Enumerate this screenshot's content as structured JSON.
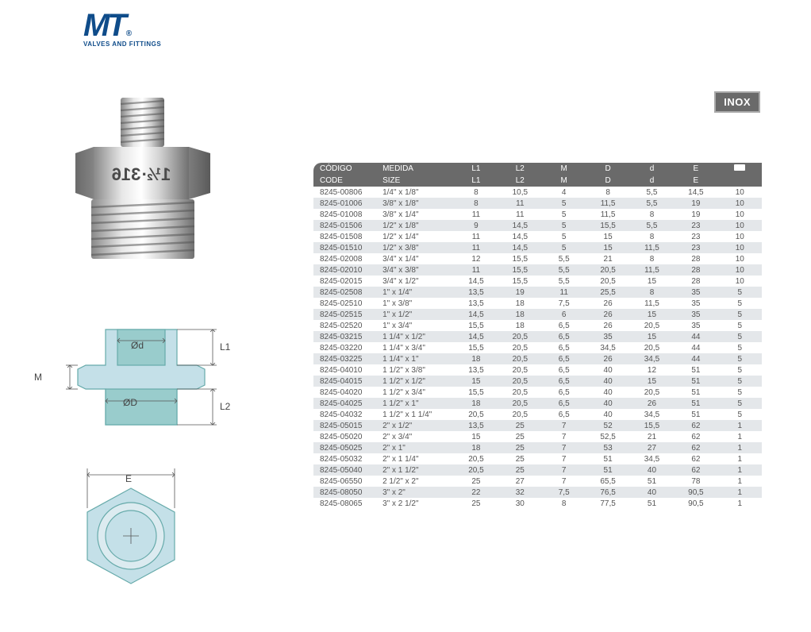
{
  "logo": {
    "main": "MT",
    "registered": "®",
    "subtitle": "VALVES AND FITTINGS"
  },
  "badge": "INOX",
  "diagram_labels": {
    "d": "Ød",
    "D": "ØD",
    "L1": "L1",
    "L2": "L2",
    "M": "M",
    "E": "E"
  },
  "table": {
    "header1": [
      "CÓDIGO",
      "MEDIDA",
      "L1",
      "L2",
      "M",
      "D",
      "d",
      "E",
      ""
    ],
    "header2": [
      "CODE",
      "SIZE",
      "L1",
      "L2",
      "M",
      "D",
      "d",
      "E",
      ""
    ],
    "columns_count": 9,
    "rows": [
      [
        "8245-00806",
        "1/4\" x 1/8\"",
        "8",
        "10,5",
        "4",
        "8",
        "5,5",
        "14,5",
        "10"
      ],
      [
        "8245-01006",
        "3/8\" x 1/8\"",
        "8",
        "11",
        "5",
        "11,5",
        "5,5",
        "19",
        "10"
      ],
      [
        "8245-01008",
        "3/8\" x 1/4\"",
        "11",
        "11",
        "5",
        "11,5",
        "8",
        "19",
        "10"
      ],
      [
        "8245-01506",
        "1/2\" x 1/8\"",
        "9",
        "14,5",
        "5",
        "15,5",
        "5,5",
        "23",
        "10"
      ],
      [
        "8245-01508",
        "1/2\" x 1/4\"",
        "11",
        "14,5",
        "5",
        "15",
        "8",
        "23",
        "10"
      ],
      [
        "8245-01510",
        "1/2\" x 3/8\"",
        "11",
        "14,5",
        "5",
        "15",
        "11,5",
        "23",
        "10"
      ],
      [
        "8245-02008",
        "3/4\" x 1/4\"",
        "12",
        "15,5",
        "5,5",
        "21",
        "8",
        "28",
        "10"
      ],
      [
        "8245-02010",
        "3/4\" x 3/8\"",
        "11",
        "15,5",
        "5,5",
        "20,5",
        "11,5",
        "28",
        "10"
      ],
      [
        "8245-02015",
        "3/4\" x 1/2\"",
        "14,5",
        "15,5",
        "5,5",
        "20,5",
        "15",
        "28",
        "10"
      ],
      [
        "8245-02508",
        "1\" x 1/4\"",
        "13,5",
        "19",
        "11",
        "25,5",
        "8",
        "35",
        "5"
      ],
      [
        "8245-02510",
        "1\" x 3/8\"",
        "13,5",
        "18",
        "7,5",
        "26",
        "11,5",
        "35",
        "5"
      ],
      [
        "8245-02515",
        "1\" x 1/2\"",
        "14,5",
        "18",
        "6",
        "26",
        "15",
        "35",
        "5"
      ],
      [
        "8245-02520",
        "1\" x 3/4\"",
        "15,5",
        "18",
        "6,5",
        "26",
        "20,5",
        "35",
        "5"
      ],
      [
        "8245-03215",
        "1 1/4\" x 1/2\"",
        "14,5",
        "20,5",
        "6,5",
        "35",
        "15",
        "44",
        "5"
      ],
      [
        "8245-03220",
        "1 1/4\" x 3/4\"",
        "15,5",
        "20,5",
        "6,5",
        "34,5",
        "20,5",
        "44",
        "5"
      ],
      [
        "8245-03225",
        "1 1/4\" x 1\"",
        "18",
        "20,5",
        "6,5",
        "26",
        "34,5",
        "44",
        "5"
      ],
      [
        "8245-04010",
        "1 1/2\" x 3/8\"",
        "13,5",
        "20,5",
        "6,5",
        "40",
        "12",
        "51",
        "5"
      ],
      [
        "8245-04015",
        "1 1/2\" x 1/2\"",
        "15",
        "20,5",
        "6,5",
        "40",
        "15",
        "51",
        "5"
      ],
      [
        "8245-04020",
        "1 1/2\" x 3/4\"",
        "15,5",
        "20,5",
        "6,5",
        "40",
        "20,5",
        "51",
        "5"
      ],
      [
        "8245-04025",
        "1 1/2\" x 1\"",
        "18",
        "20,5",
        "6,5",
        "40",
        "26",
        "51",
        "5"
      ],
      [
        "8245-04032",
        "1 1/2\" x 1 1/4\"",
        "20,5",
        "20,5",
        "6,5",
        "40",
        "34,5",
        "51",
        "5"
      ],
      [
        "8245-05015",
        "2\" x 1/2\"",
        "13,5",
        "25",
        "7",
        "52",
        "15,5",
        "62",
        "1"
      ],
      [
        "8245-05020",
        "2\" x 3/4\"",
        "15",
        "25",
        "7",
        "52,5",
        "21",
        "62",
        "1"
      ],
      [
        "8245-05025",
        "2\" x 1\"",
        "18",
        "25",
        "7",
        "53",
        "27",
        "62",
        "1"
      ],
      [
        "8245-05032",
        "2\" x 1 1/4\"",
        "20,5",
        "25",
        "7",
        "51",
        "34,5",
        "62",
        "1"
      ],
      [
        "8245-05040",
        "2\" x 1 1/2\"",
        "20,5",
        "25",
        "7",
        "51",
        "40",
        "62",
        "1"
      ],
      [
        "8245-06550",
        "2 1/2\" x 2\"",
        "25",
        "27",
        "7",
        "65,5",
        "51",
        "78",
        "1"
      ],
      [
        "8245-08050",
        "3\" x 2\"",
        "22",
        "32",
        "7,5",
        "76,5",
        "40",
        "90,5",
        "1"
      ],
      [
        "8245-08065",
        "3\" x 2 1/2\"",
        "25",
        "30",
        "8",
        "77,5",
        "51",
        "90,5",
        "1"
      ]
    ]
  }
}
